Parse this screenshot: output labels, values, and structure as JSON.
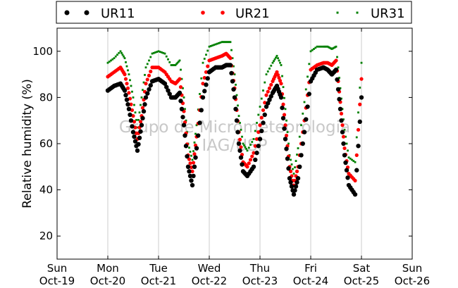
{
  "chart_data": {
    "type": "scatter",
    "title": "",
    "xlabel": "",
    "ylabel": "Relative humidity (%)",
    "xlim": [
      "2014-10-19",
      "2014-10-26"
    ],
    "ylim": [
      10,
      110
    ],
    "yticks": [
      20,
      40,
      60,
      80,
      100
    ],
    "xtick_labels": [
      [
        "Sun",
        "Oct-19"
      ],
      [
        "Mon",
        "Oct-20"
      ],
      [
        "Tue",
        "Oct-21"
      ],
      [
        "Wed",
        "Oct-22"
      ],
      [
        "Thu",
        "Oct-23"
      ],
      [
        "Fri",
        "Oct-24"
      ],
      [
        "Sat",
        "Oct-25"
      ],
      [
        "Sun",
        "Oct-26"
      ]
    ],
    "grid": "vertical",
    "legend_position": "top",
    "watermark": [
      "Grupo de Micrometeorologia",
      "IAG/USP"
    ],
    "x_dates": [
      "2014-10-20 00:00",
      "2014-10-20 03:00",
      "2014-10-20 06:00",
      "2014-10-20 08:00",
      "2014-10-20 10:00",
      "2014-10-20 12:00",
      "2014-10-20 14:00",
      "2014-10-20 16:00",
      "2014-10-20 18:00",
      "2014-10-20 21:00",
      "2014-10-21 00:00",
      "2014-10-21 03:00",
      "2014-10-21 06:00",
      "2014-10-21 08:00",
      "2014-10-21 10:00",
      "2014-10-21 12:00",
      "2014-10-21 14:00",
      "2014-10-21 16:00",
      "2014-10-21 18:00",
      "2014-10-21 21:00",
      "2014-10-22 00:00",
      "2014-10-22 03:00",
      "2014-10-22 06:00",
      "2014-10-22 08:00",
      "2014-10-22 10:00",
      "2014-10-22 12:00",
      "2014-10-22 14:00",
      "2014-10-22 16:00",
      "2014-10-22 18:00",
      "2014-10-22 21:00",
      "2014-10-23 00:00",
      "2014-10-23 03:00",
      "2014-10-23 06:00",
      "2014-10-23 08:00",
      "2014-10-23 10:00",
      "2014-10-23 12:00",
      "2014-10-23 14:00",
      "2014-10-23 16:00",
      "2014-10-23 18:00",
      "2014-10-23 21:00",
      "2014-10-24 00:00",
      "2014-10-24 03:00",
      "2014-10-24 06:00",
      "2014-10-24 08:00",
      "2014-10-24 10:00",
      "2014-10-24 12:00",
      "2014-10-24 14:00",
      "2014-10-24 16:00",
      "2014-10-24 18:00",
      "2014-10-24 21:00",
      "2014-10-25 00:00"
    ],
    "series": [
      {
        "name": "UR11",
        "color": "#000000",
        "values": [
          83,
          85,
          86,
          83,
          75,
          65,
          57,
          68,
          80,
          87,
          88,
          86,
          80,
          80,
          82,
          68,
          50,
          42,
          58,
          80,
          91,
          93,
          93,
          94,
          94,
          80,
          60,
          48,
          46,
          50,
          62,
          76,
          82,
          85,
          80,
          62,
          45,
          38,
          45,
          65,
          87,
          92,
          93,
          92,
          90,
          92,
          75,
          55,
          42,
          38,
          80
        ]
      },
      {
        "name": "UR21",
        "color": "#ff0000",
        "values": [
          89,
          91,
          93,
          90,
          82,
          72,
          62,
          72,
          86,
          93,
          93,
          91,
          87,
          86,
          88,
          74,
          55,
          48,
          63,
          86,
          96,
          97,
          98,
          99,
          97,
          84,
          65,
          52,
          50,
          56,
          68,
          81,
          87,
          91,
          86,
          68,
          50,
          42,
          50,
          70,
          92,
          94,
          95,
          95,
          94,
          96,
          78,
          58,
          47,
          44,
          88
        ]
      },
      {
        "name": "UR31",
        "color": "#008000",
        "values": [
          95,
          97,
          100,
          97,
          90,
          80,
          67,
          80,
          93,
          99,
          100,
          99,
          94,
          94,
          96,
          80,
          60,
          53,
          68,
          95,
          102,
          103,
          104,
          104,
          104,
          90,
          72,
          60,
          57,
          62,
          76,
          90,
          95,
          98,
          94,
          75,
          55,
          47,
          58,
          78,
          100,
          102,
          102,
          102,
          101,
          102,
          84,
          66,
          54,
          52,
          95
        ]
      }
    ]
  }
}
